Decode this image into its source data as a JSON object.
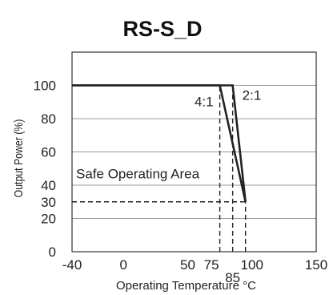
{
  "chart_data": {
    "type": "line",
    "title": "RS-S_D",
    "xlabel": "Operating Temperature °C",
    "ylabel": "Output Power (%)",
    "xlim": [
      -40,
      150
    ],
    "ylim": [
      0,
      120
    ],
    "x_ticks": [
      -40,
      0,
      50,
      100,
      150
    ],
    "x_tick_labels": [
      "-40",
      "0",
      "50",
      "100",
      "150"
    ],
    "y_ticks": [
      0,
      20,
      40,
      60,
      80,
      100
    ],
    "y_tick_labels": [
      "0",
      "20",
      "40",
      "60",
      "80",
      "100"
    ],
    "y_grid": [
      20,
      40,
      60,
      80,
      100
    ],
    "grid": true,
    "series": [
      {
        "name": "4:1",
        "x": [
          -40,
          75,
          95
        ],
        "y": [
          100,
          100,
          30
        ]
      },
      {
        "name": "2:1",
        "x": [
          -40,
          85,
          95
        ],
        "y": [
          100,
          100,
          30
        ]
      }
    ],
    "reference_lines": [
      {
        "x": [
          -40,
          95
        ],
        "y": [
          30,
          30
        ],
        "style": "dashed"
      },
      {
        "x": [
          75,
          75
        ],
        "y": [
          0,
          100
        ],
        "style": "dashed"
      },
      {
        "x": [
          85,
          85
        ],
        "y": [
          0,
          100
        ],
        "style": "dashed"
      },
      {
        "x": [
          95,
          95
        ],
        "y": [
          0,
          30
        ],
        "style": "dashed"
      }
    ],
    "annotations": {
      "label_30": "30",
      "label_75": "75",
      "label_85": "85",
      "series_4_1": "4:1",
      "series_2_1": "2:1",
      "area_label": "Safe Operating Area"
    },
    "colors": {
      "line": "#222222",
      "grid": "#999999",
      "frame": "#333333"
    }
  }
}
